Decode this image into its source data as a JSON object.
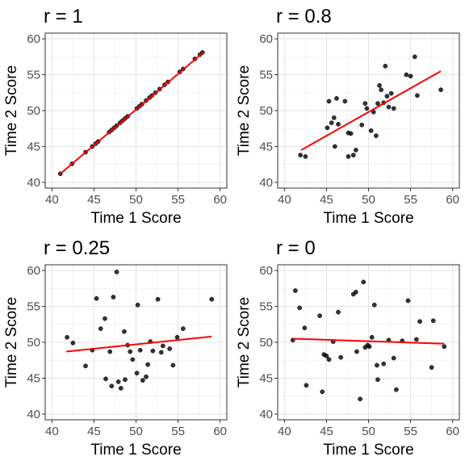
{
  "chart_data": [
    {
      "type": "scatter",
      "title": "r = 1",
      "xlabel": "Time 1 Score",
      "ylabel": "Time 2 Score",
      "xlim": [
        39.2,
        60.8
      ],
      "ylim": [
        39.2,
        60.8
      ],
      "x_ticks": [
        "40",
        "45",
        "50",
        "55",
        "60"
      ],
      "y_ticks": [
        "40",
        "45",
        "50",
        "55",
        "60"
      ],
      "grid": true,
      "point_color": "#000000",
      "fit_color": "#ff0000",
      "fit_line": {
        "x": [
          41.0,
          58.0
        ],
        "y": [
          41.2,
          58.1
        ]
      },
      "points": [
        {
          "x": 41.0,
          "y": 41.2
        },
        {
          "x": 42.4,
          "y": 42.6
        },
        {
          "x": 44.0,
          "y": 44.2
        },
        {
          "x": 44.8,
          "y": 45.0
        },
        {
          "x": 45.2,
          "y": 45.4
        },
        {
          "x": 45.5,
          "y": 45.7
        },
        {
          "x": 46.8,
          "y": 47.0
        },
        {
          "x": 47.1,
          "y": 47.3
        },
        {
          "x": 47.4,
          "y": 47.6
        },
        {
          "x": 47.7,
          "y": 47.9
        },
        {
          "x": 48.1,
          "y": 48.3
        },
        {
          "x": 48.4,
          "y": 48.6
        },
        {
          "x": 48.7,
          "y": 48.9
        },
        {
          "x": 49.0,
          "y": 49.2
        },
        {
          "x": 50.1,
          "y": 50.3
        },
        {
          "x": 50.4,
          "y": 50.6
        },
        {
          "x": 50.7,
          "y": 50.9
        },
        {
          "x": 51.2,
          "y": 51.4
        },
        {
          "x": 51.6,
          "y": 51.8
        },
        {
          "x": 51.9,
          "y": 52.1
        },
        {
          "x": 52.3,
          "y": 52.5
        },
        {
          "x": 52.8,
          "y": 53.0
        },
        {
          "x": 53.4,
          "y": 53.6
        },
        {
          "x": 53.8,
          "y": 54.0
        },
        {
          "x": 55.2,
          "y": 55.4
        },
        {
          "x": 55.6,
          "y": 55.8
        },
        {
          "x": 57.0,
          "y": 57.2
        },
        {
          "x": 57.6,
          "y": 57.8
        },
        {
          "x": 57.9,
          "y": 58.1
        }
      ]
    },
    {
      "type": "scatter",
      "title": "r = 0.8",
      "xlabel": "Time 1 Score",
      "ylabel": "Time 2 Score",
      "xlim": [
        39.2,
        60.8
      ],
      "ylim": [
        39.2,
        60.8
      ],
      "x_ticks": [
        "40",
        "45",
        "50",
        "55",
        "60"
      ],
      "y_ticks": [
        "40",
        "45",
        "50",
        "55",
        "60"
      ],
      "grid": true,
      "point_color": "#000000",
      "fit_color": "#ff0000",
      "fit_line": {
        "x": [
          42.0,
          58.6
        ],
        "y": [
          44.5,
          55.5
        ]
      },
      "points": [
        {
          "x": 41.9,
          "y": 43.8
        },
        {
          "x": 42.5,
          "y": 43.6
        },
        {
          "x": 45.1,
          "y": 47.6
        },
        {
          "x": 45.3,
          "y": 51.3
        },
        {
          "x": 45.6,
          "y": 48.3
        },
        {
          "x": 45.9,
          "y": 49.0
        },
        {
          "x": 46.0,
          "y": 45.0
        },
        {
          "x": 46.2,
          "y": 51.7
        },
        {
          "x": 46.4,
          "y": 48.1
        },
        {
          "x": 47.2,
          "y": 51.3
        },
        {
          "x": 47.6,
          "y": 46.9
        },
        {
          "x": 47.9,
          "y": 46.8
        },
        {
          "x": 47.6,
          "y": 43.6
        },
        {
          "x": 48.2,
          "y": 43.8
        },
        {
          "x": 48.5,
          "y": 44.5
        },
        {
          "x": 49.2,
          "y": 48.0
        },
        {
          "x": 49.6,
          "y": 51.0
        },
        {
          "x": 49.8,
          "y": 50.3
        },
        {
          "x": 50.3,
          "y": 47.2
        },
        {
          "x": 50.6,
          "y": 49.8
        },
        {
          "x": 50.9,
          "y": 46.5
        },
        {
          "x": 51.1,
          "y": 51.0
        },
        {
          "x": 51.3,
          "y": 53.5
        },
        {
          "x": 51.5,
          "y": 52.9
        },
        {
          "x": 51.8,
          "y": 51.1
        },
        {
          "x": 52.0,
          "y": 56.2
        },
        {
          "x": 52.2,
          "y": 52.0
        },
        {
          "x": 52.4,
          "y": 50.5
        },
        {
          "x": 52.7,
          "y": 52.4
        },
        {
          "x": 53.0,
          "y": 50.3
        },
        {
          "x": 54.5,
          "y": 55.0
        },
        {
          "x": 55.0,
          "y": 54.8
        },
        {
          "x": 55.5,
          "y": 57.5
        },
        {
          "x": 55.8,
          "y": 52.1
        },
        {
          "x": 58.6,
          "y": 52.9
        }
      ]
    },
    {
      "type": "scatter",
      "title": "r = 0.25",
      "xlabel": "Time 1 Score",
      "ylabel": "Time 2 Score",
      "xlim": [
        39.2,
        60.8
      ],
      "ylim": [
        39.2,
        60.8
      ],
      "x_ticks": [
        "40",
        "45",
        "50",
        "55",
        "60"
      ],
      "y_ticks": [
        "40",
        "45",
        "50",
        "55",
        "60"
      ],
      "grid": true,
      "point_color": "#000000",
      "fit_color": "#ff0000",
      "fit_line": {
        "x": [
          41.7,
          59.0
        ],
        "y": [
          48.7,
          50.8
        ]
      },
      "points": [
        {
          "x": 41.8,
          "y": 50.7
        },
        {
          "x": 42.5,
          "y": 49.9
        },
        {
          "x": 44.0,
          "y": 46.7
        },
        {
          "x": 44.8,
          "y": 48.9
        },
        {
          "x": 45.3,
          "y": 56.1
        },
        {
          "x": 45.8,
          "y": 51.9
        },
        {
          "x": 46.3,
          "y": 53.3
        },
        {
          "x": 46.4,
          "y": 44.9
        },
        {
          "x": 46.9,
          "y": 48.7
        },
        {
          "x": 47.1,
          "y": 43.9
        },
        {
          "x": 47.3,
          "y": 56.3
        },
        {
          "x": 47.7,
          "y": 59.8
        },
        {
          "x": 47.9,
          "y": 44.5
        },
        {
          "x": 48.2,
          "y": 43.6
        },
        {
          "x": 48.7,
          "y": 44.8
        },
        {
          "x": 49.0,
          "y": 49.6
        },
        {
          "x": 49.3,
          "y": 48.7
        },
        {
          "x": 49.6,
          "y": 47.6
        },
        {
          "x": 50.1,
          "y": 45.7
        },
        {
          "x": 50.2,
          "y": 55.2
        },
        {
          "x": 50.5,
          "y": 48.9
        },
        {
          "x": 50.8,
          "y": 44.7
        },
        {
          "x": 51.2,
          "y": 45.2
        },
        {
          "x": 51.4,
          "y": 46.9
        },
        {
          "x": 51.7,
          "y": 50.1
        },
        {
          "x": 52.0,
          "y": 48.8
        },
        {
          "x": 52.6,
          "y": 56.0
        },
        {
          "x": 53.2,
          "y": 49.5
        },
        {
          "x": 54.0,
          "y": 49.1
        },
        {
          "x": 54.4,
          "y": 46.8
        },
        {
          "x": 54.9,
          "y": 50.7
        },
        {
          "x": 55.6,
          "y": 51.9
        },
        {
          "x": 59.0,
          "y": 56.0
        },
        {
          "x": 53.0,
          "y": 48.6
        },
        {
          "x": 48.6,
          "y": 51.5
        }
      ]
    },
    {
      "type": "scatter",
      "title": "r = 0",
      "xlabel": "Time 1 Score",
      "ylabel": "Time 2 Score",
      "xlim": [
        39.2,
        60.8
      ],
      "ylim": [
        39.2,
        60.8
      ],
      "x_ticks": [
        "40",
        "45",
        "50",
        "55",
        "60"
      ],
      "y_ticks": [
        "40",
        "45",
        "50",
        "55",
        "60"
      ],
      "grid": true,
      "point_color": "#000000",
      "fit_color": "#ff0000",
      "fit_line": {
        "x": [
          41.0,
          59.0
        ],
        "y": [
          50.5,
          49.8
        ]
      },
      "points": [
        {
          "x": 41.0,
          "y": 50.3
        },
        {
          "x": 41.3,
          "y": 57.2
        },
        {
          "x": 41.8,
          "y": 54.8
        },
        {
          "x": 42.4,
          "y": 52.0
        },
        {
          "x": 42.6,
          "y": 44.0
        },
        {
          "x": 44.2,
          "y": 53.7
        },
        {
          "x": 44.5,
          "y": 43.1
        },
        {
          "x": 44.7,
          "y": 48.3
        },
        {
          "x": 45.0,
          "y": 48.1
        },
        {
          "x": 45.3,
          "y": 47.6
        },
        {
          "x": 45.8,
          "y": 50.1
        },
        {
          "x": 46.4,
          "y": 54.2
        },
        {
          "x": 46.7,
          "y": 47.9
        },
        {
          "x": 48.2,
          "y": 56.7
        },
        {
          "x": 48.5,
          "y": 57.0
        },
        {
          "x": 48.6,
          "y": 48.7
        },
        {
          "x": 49.0,
          "y": 42.1
        },
        {
          "x": 49.4,
          "y": 58.4
        },
        {
          "x": 49.6,
          "y": 49.3
        },
        {
          "x": 49.9,
          "y": 49.6
        },
        {
          "x": 50.1,
          "y": 49.4
        },
        {
          "x": 50.4,
          "y": 50.7
        },
        {
          "x": 50.7,
          "y": 55.2
        },
        {
          "x": 51.0,
          "y": 46.8
        },
        {
          "x": 51.1,
          "y": 44.8
        },
        {
          "x": 51.8,
          "y": 47.0
        },
        {
          "x": 52.4,
          "y": 50.3
        },
        {
          "x": 53.0,
          "y": 47.8
        },
        {
          "x": 53.3,
          "y": 43.4
        },
        {
          "x": 54.0,
          "y": 50.2
        },
        {
          "x": 54.7,
          "y": 55.8
        },
        {
          "x": 55.7,
          "y": 50.4
        },
        {
          "x": 56.1,
          "y": 52.9
        },
        {
          "x": 57.7,
          "y": 53.0
        },
        {
          "x": 57.5,
          "y": 46.5
        },
        {
          "x": 59.0,
          "y": 49.4
        }
      ]
    }
  ]
}
